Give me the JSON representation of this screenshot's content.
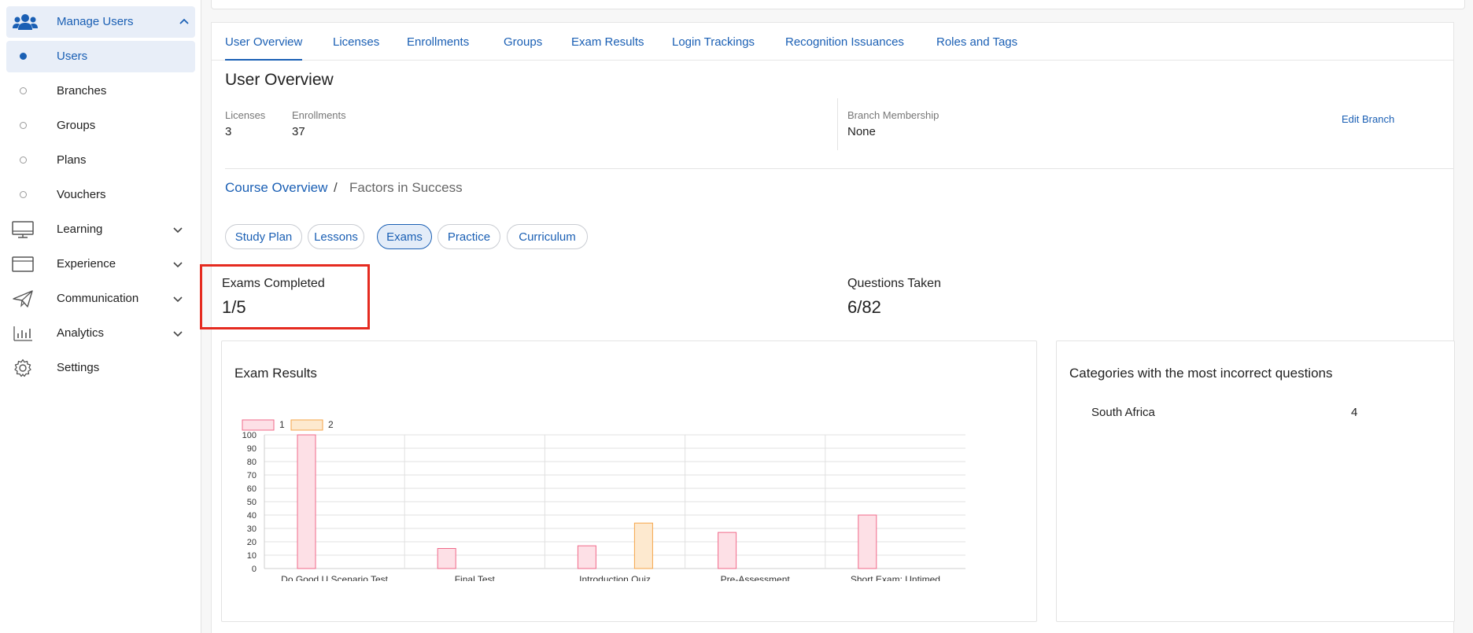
{
  "sidebar": {
    "group": {
      "label": "Manage Users",
      "icon": "users-icon"
    },
    "sub_items": [
      {
        "label": "Users",
        "active": true
      },
      {
        "label": "Branches",
        "active": false
      },
      {
        "label": "Groups",
        "active": false
      },
      {
        "label": "Plans",
        "active": false
      },
      {
        "label": "Vouchers",
        "active": false
      }
    ],
    "items": [
      {
        "label": "Learning",
        "icon": "monitor-icon"
      },
      {
        "label": "Experience",
        "icon": "browser-window-icon"
      },
      {
        "label": "Communication",
        "icon": "paper-plane-icon"
      },
      {
        "label": "Analytics",
        "icon": "bar-chart-icon"
      },
      {
        "label": "Settings",
        "icon": "gear-icon"
      }
    ]
  },
  "tabs": [
    {
      "label": "User Overview",
      "active": true
    },
    {
      "label": "Licenses"
    },
    {
      "label": "Enrollments"
    },
    {
      "label": "Groups"
    },
    {
      "label": "Exam Results"
    },
    {
      "label": "Login Trackings"
    },
    {
      "label": "Recognition Issuances"
    },
    {
      "label": "Roles and Tags"
    }
  ],
  "overview": {
    "title": "User Overview",
    "licenses_label": "Licenses",
    "licenses_value": "3",
    "enrollments_label": "Enrollments",
    "enrollments_value": "37",
    "branch_label": "Branch Membership",
    "branch_value": "None",
    "edit_branch": "Edit Branch"
  },
  "breadcrumb": {
    "link": "Course Overview",
    "separator": "/",
    "current": "Factors in Success"
  },
  "pills": [
    {
      "label": "Study Plan"
    },
    {
      "label": "Lessons"
    },
    {
      "label": "Exams",
      "active": true
    },
    {
      "label": "Practice"
    },
    {
      "label": "Curriculum"
    }
  ],
  "kpis": {
    "exams_completed_label": "Exams Completed",
    "exams_completed_value": "1/5",
    "questions_taken_label": "Questions Taken",
    "questions_taken_value": "6/82"
  },
  "exam_results_panel": {
    "title": "Exam Results"
  },
  "categories_panel": {
    "title": "Categories with the most incorrect questions",
    "rows": [
      {
        "name": "South Africa",
        "count": "4"
      }
    ]
  },
  "colors": {
    "accent": "#1a5fb4",
    "highlight": "#e52b20",
    "series1_fill": "#fde0e6",
    "series1_stroke": "#f06a8a",
    "series2_fill": "#fde9cf",
    "series2_stroke": "#f5a54a"
  },
  "chart_data": {
    "type": "bar",
    "categories": [
      "Do Good U Scenario Test",
      "Final Test",
      "Introduction Quiz",
      "Pre-Assessment",
      "Short Exam: Untimed"
    ],
    "series": [
      {
        "name": "1",
        "values": [
          100,
          15,
          17,
          27,
          40
        ]
      },
      {
        "name": "2",
        "values": [
          null,
          null,
          34,
          null,
          null
        ]
      }
    ],
    "ylim": [
      0,
      100
    ],
    "yticks": [
      0,
      10,
      20,
      30,
      40,
      50,
      60,
      70,
      80,
      90,
      100
    ],
    "grid": true,
    "legend": "top-left"
  }
}
